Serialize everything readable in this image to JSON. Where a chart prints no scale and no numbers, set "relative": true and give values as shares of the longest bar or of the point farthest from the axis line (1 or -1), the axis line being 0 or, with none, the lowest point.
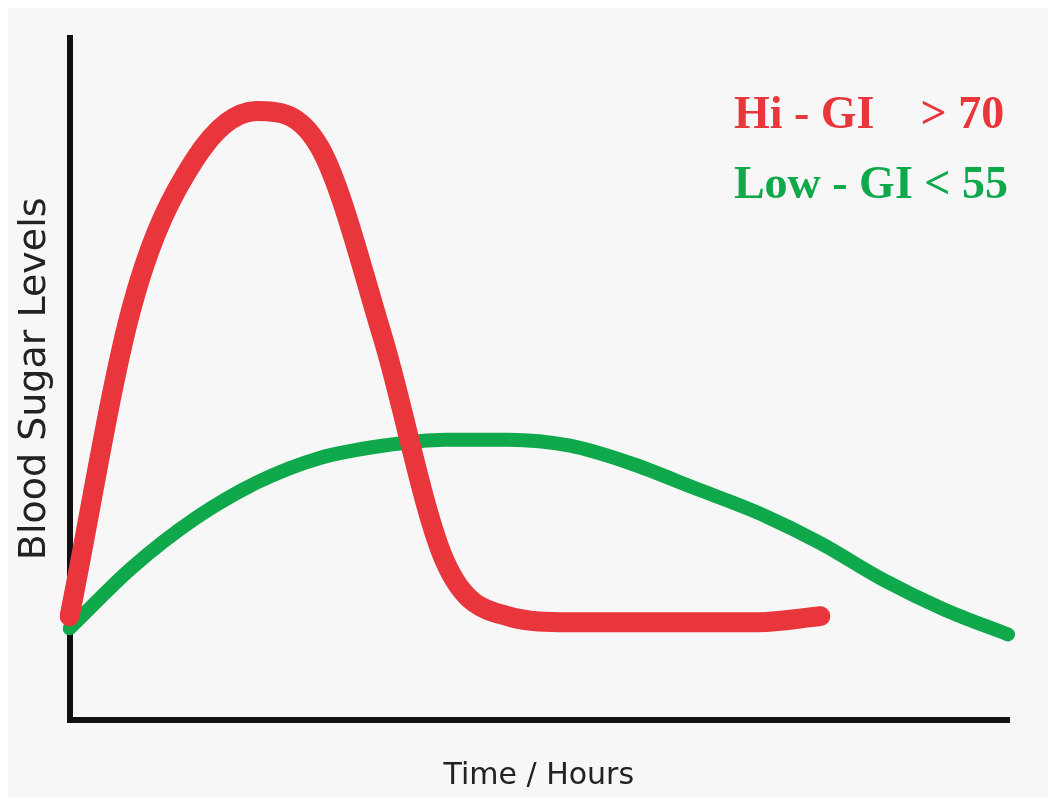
{
  "chart_data": {
    "type": "line",
    "xlabel": "Time / Hours",
    "ylabel": "Blood Sugar Levels",
    "relative": true,
    "legend": "top right",
    "grid": false,
    "marker": "none",
    "line_style": "solid",
    "categories": [
      null,
      null,
      null,
      null,
      null,
      null,
      null,
      null,
      null,
      null,
      null,
      null,
      null,
      null,
      null,
      null
    ],
    "series": [
      {
        "name": "Hi - GI    > 70",
        "color": "#e8363c",
        "values": [
          0.17,
          0.68,
          0.92,
          1.0,
          0.94,
          0.63,
          0.26,
          0.17,
          0.16,
          0.16,
          0.16,
          0.16,
          0.17,
          null,
          null,
          null
        ]
      },
      {
        "name": "Low - GI < 55",
        "color": "#0fa84a",
        "values": [
          0.15,
          0.25,
          0.33,
          0.39,
          0.43,
          0.45,
          0.46,
          0.46,
          0.45,
          0.42,
          0.38,
          0.34,
          0.29,
          0.23,
          0.18,
          0.14
        ]
      }
    ]
  }
}
